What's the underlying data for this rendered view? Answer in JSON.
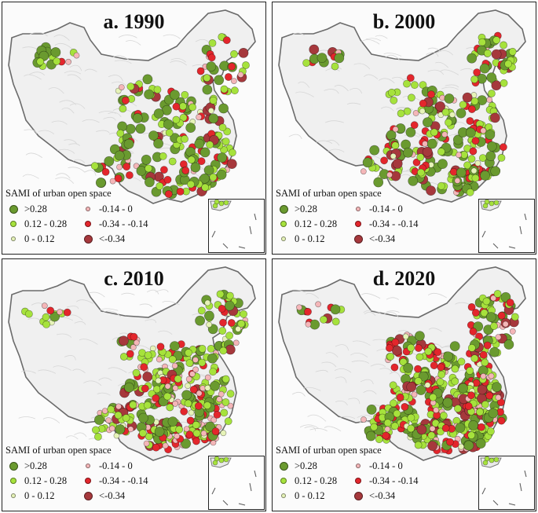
{
  "legend": {
    "title": "SAMI of urban open space",
    "items": [
      {
        "label": ">0.28",
        "color": "#6a9a2f",
        "size": 11
      },
      {
        "label": "0.12 - 0.28",
        "color": "#a6e23c",
        "size": 8
      },
      {
        "label": "0 - 0.12",
        "color": "#e6f3b8",
        "size": 6
      },
      {
        "label": "-0.14 - 0",
        "color": "#f4b6b8",
        "size": 6
      },
      {
        "label": "-0.34 - -0.14",
        "color": "#e3262c",
        "size": 8
      },
      {
        "label": "<-0.34",
        "color": "#a6383c",
        "size": 11
      }
    ]
  },
  "panels": [
    {
      "id": "a",
      "title": "a. 1990"
    },
    {
      "id": "b",
      "title": "b. 2000"
    },
    {
      "id": "c",
      "title": "c. 2010"
    },
    {
      "id": "d",
      "title": "d. 2020"
    }
  ]
}
